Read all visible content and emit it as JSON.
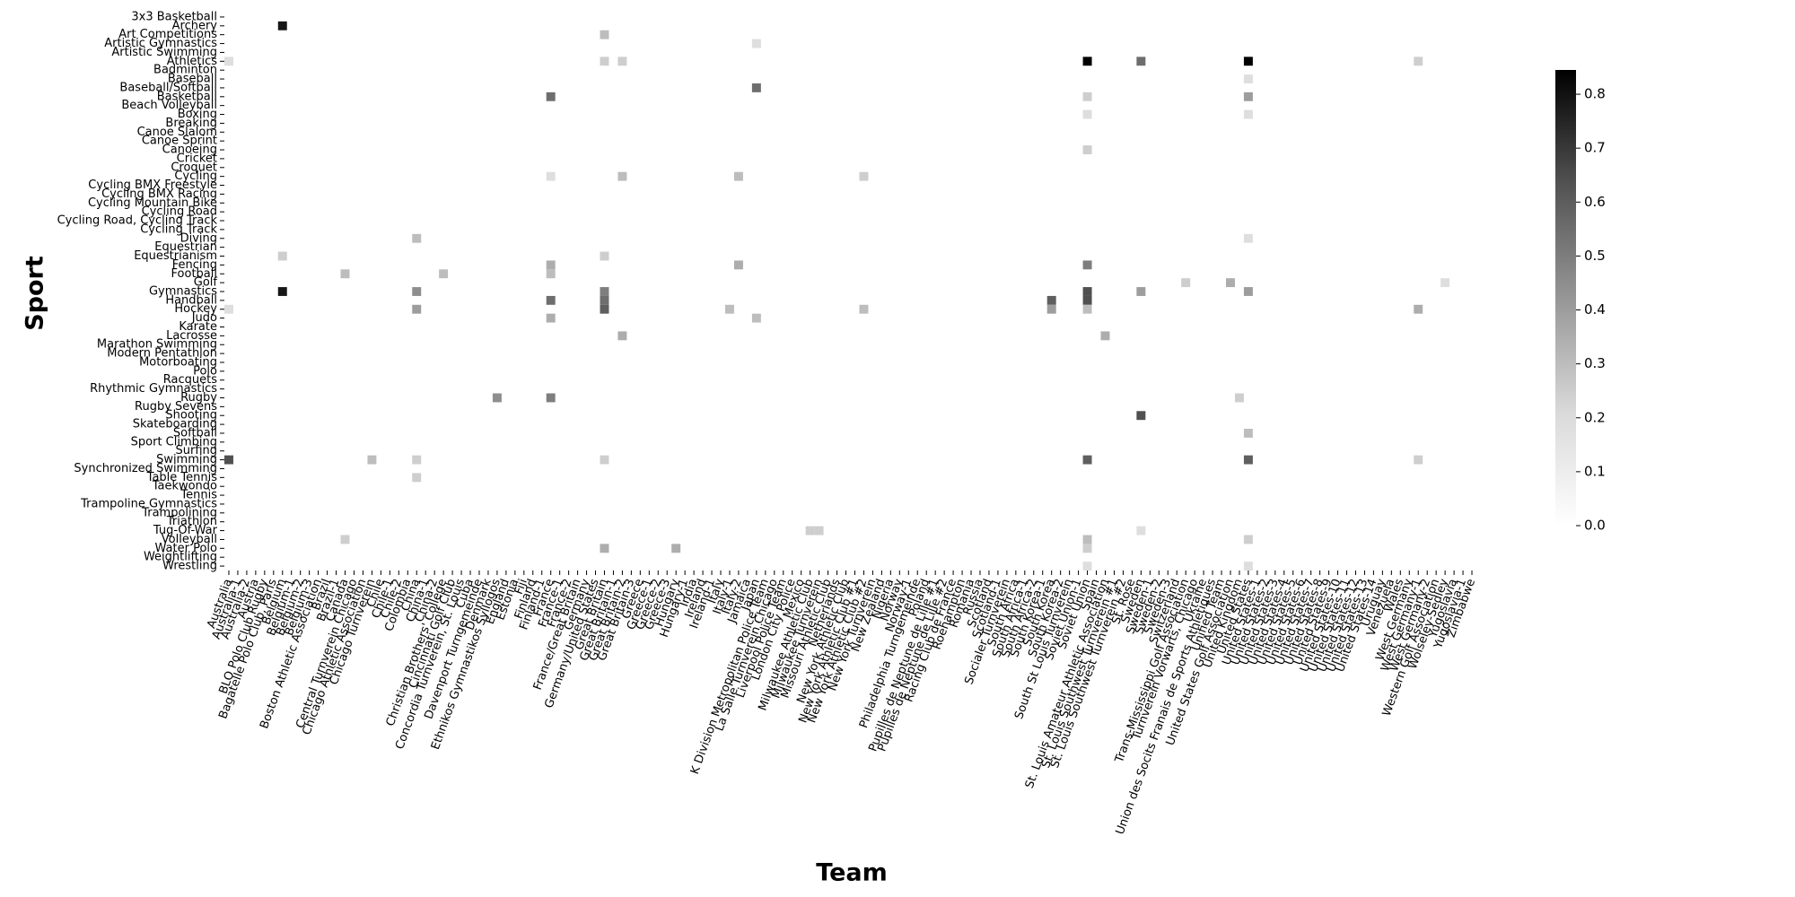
{
  "chart_data": {
    "type": "heatmap",
    "x_label": "Team",
    "y_label": "Sport",
    "colormap": "Greys",
    "zlim": [
      0,
      0.845
    ],
    "zticks": [
      {
        "value": 0,
        "label": "0.0"
      },
      0.1,
      0.2,
      0.3,
      0.4,
      0.5,
      0.6,
      0.7,
      0.8
    ],
    "x_categories": [
      "Australia",
      "Australia-1",
      "Australia-2",
      "Austria",
      "BLO Polo Club Rugby",
      "Bagatelle Polo Club, Paris",
      "Belgium",
      "Belgium-1",
      "Belgium-2",
      "Belgium-3",
      "Boston Athletic Association",
      "Brazil",
      "Brazil-1",
      "Canada",
      "Central Turnverein Chicago",
      "Chicago Athletic Association",
      "Chicago Turnverein",
      "Chile",
      "Chile-1",
      "Chile-2",
      "Colombia",
      "China",
      "China-1",
      "China-2",
      "Christian Brothers' College",
      "Cincinnati Golf Club",
      "Concordia Turnverein, St. Louis",
      "Cuba",
      "Davenport Turngemeinde",
      "Denmark",
      "Ethnikos Gymnastikos Syllogos",
      "England",
      "Estonia",
      "Fiji",
      "Finland",
      "Finland-1",
      "France",
      "France-1",
      "France-2",
      "France/Great Britain",
      "Germany",
      "Germany/United States",
      "Great Britain",
      "Great Britain-1",
      "Great Britain-2",
      "Great Britain-3",
      "Greece",
      "Greece-1",
      "Greece-2",
      "Greece-3",
      "Hungary",
      "Hungary-1",
      "India",
      "Ireland",
      "Ireland-1",
      "Italy",
      "Italy-1",
      "Italy-2",
      "Jamaica",
      "Japan",
      "K Division Metropolitan Police Team",
      "La Salle Turnverein Chicago",
      "Liverpool Police Team",
      "London City Police",
      "Mexico",
      "Milwaukee Athletic Club",
      "Milwaukee Turnverein",
      "Missouri Athletic Club",
      "Netherlands",
      "New York Athletic Club",
      "New York Athletic Club #1",
      "New York Athletic Club #2",
      "New York Turnverein",
      "New Zealand",
      "Nigeria",
      "Norway",
      "Norway-1",
      "Philadelphia Turngemeinde",
      "Poland",
      "Pupilles de Neptune de Lille #1",
      "Pupilles de Neptune de Lille #2",
      "Racing Club de France",
      "Roehampton",
      "Romania",
      "Russia",
      "Scotland",
      "Scotland-1",
      "Socialer Turnverein",
      "South Africa",
      "South Africa-1",
      "South Africa-2",
      "South Korea-1",
      "South Korea",
      "South Korea-2",
      "South St Louis Turnverein",
      "Soviet Union-1",
      "Soviet Union",
      "Spain",
      "St. Louis Amateur Athletic Association",
      "St. Louis Southwest Turnverein #1",
      "St. Louis Southwest Turnverein #2",
      "St. Rose",
      "Sweden",
      "Sweden-1",
      "Sweden-2",
      "Sweden-3",
      "Switzerland",
      "Trans-Mississippi Golf Association",
      "Turnverein Vorwarts, Chicago",
      "Ukraine",
      "Union des Socits Franais de Sports Athletiques",
      "Unified Team",
      "United States Golf Association",
      "United Kingdom",
      "United States",
      "United States-1",
      "United States-2",
      "United States-3",
      "United States-4",
      "United States-5",
      "United States-6",
      "United States-7",
      "United States-8",
      "United States-9",
      "United States-10",
      "United States-11",
      "United States-12",
      "United States-13",
      "United States-14",
      "Uruguay",
      "Venezuela",
      "Wales",
      "West Germany",
      "West Germany-1",
      "West Germany-2",
      "Western Golf Association",
      "Wolseley-Sedley",
      "Yugoslavia",
      "Yugoslavia-1",
      "Zimbabwe"
    ],
    "y_categories": [
      "3x3 Basketball",
      "Archery",
      "Art Competitions",
      "Artistic Gymnastics",
      "Artistic Swimming",
      "Athletics",
      "Badminton",
      "Baseball",
      "Baseball/Softball",
      "Basketball",
      "Beach Volleyball",
      "Boxing",
      "Breaking",
      "Canoe Slalom",
      "Canoe Sprint",
      "Canoeing",
      "Cricket",
      "Croquet",
      "Cycling",
      "Cycling BMX Freestyle",
      "Cycling BMX Racing",
      "Cycling Mountain Bike",
      "Cycling Road",
      "Cycling Road, Cycling Track",
      "Cycling Track",
      "Diving",
      "Equestrian",
      "Equestrianism",
      "Fencing",
      "Football",
      "Golf",
      "Gymnastics",
      "Handball",
      "Hockey",
      "Judo",
      "Karate",
      "Lacrosse",
      "Marathon Swimming",
      "Modern Pentathlon",
      "Motorboating",
      "Polo",
      "Racquets",
      "Rhythmic Gymnastics",
      "Rugby",
      "Rugby Sevens",
      "Shooting",
      "Skateboarding",
      "Softball",
      "Sport Climbing",
      "Surfing",
      "Swimming",
      "Synchronized Swimming",
      "Table Tennis",
      "Taekwondo",
      "Tennis",
      "Trampoline Gymnastics",
      "Trampolining",
      "Triathlon",
      "Tug-Of-War",
      "Volleyball",
      "Water Polo",
      "Weightlifting",
      "Wrestling"
    ],
    "cells": [
      {
        "x": "Belgium",
        "y": "Archery",
        "value": 0.75
      },
      {
        "x": "Great Britain",
        "y": "Art Competitions",
        "value": 0.2
      },
      {
        "x": "Japan",
        "y": "Artistic Gymnastics",
        "value": 0.1
      },
      {
        "x": "Soviet Union",
        "y": "Athletics",
        "value": 0.84
      },
      {
        "x": "Sweden",
        "y": "Athletics",
        "value": 0.45
      },
      {
        "x": "United States",
        "y": "Athletics",
        "value": 0.84
      },
      {
        "x": "Australia",
        "y": "Athletics",
        "value": 0.1
      },
      {
        "x": "Great Britain",
        "y": "Athletics",
        "value": 0.15
      },
      {
        "x": "Great Britain-2",
        "y": "Athletics",
        "value": 0.15
      },
      {
        "x": "West Germany-1",
        "y": "Athletics",
        "value": 0.15
      },
      {
        "x": "Japan",
        "y": "Baseball/Softball",
        "value": 0.45
      },
      {
        "x": "France",
        "y": "Basketball",
        "value": 0.45
      },
      {
        "x": "Soviet Union",
        "y": "Basketball",
        "value": 0.15
      },
      {
        "x": "United States",
        "y": "Basketball",
        "value": 0.3
      },
      {
        "x": "United States",
        "y": "Baseball",
        "value": 0.1
      },
      {
        "x": "Soviet Union",
        "y": "Boxing",
        "value": 0.1
      },
      {
        "x": "United States",
        "y": "Boxing",
        "value": 0.1
      },
      {
        "x": "Soviet Union",
        "y": "Canoeing",
        "value": 0.15
      },
      {
        "x": "France",
        "y": "Cycling",
        "value": 0.1
      },
      {
        "x": "Great Britain-2",
        "y": "Cycling",
        "value": 0.2
      },
      {
        "x": "Italy-2",
        "y": "Cycling",
        "value": 0.2
      },
      {
        "x": "New York Athletic Club #2",
        "y": "Cycling",
        "value": 0.15
      },
      {
        "x": "China",
        "y": "Diving",
        "value": 0.2
      },
      {
        "x": "United States",
        "y": "Diving",
        "value": 0.1
      },
      {
        "x": "Belgium",
        "y": "Equestrianism",
        "value": 0.15
      },
      {
        "x": "Great Britain",
        "y": "Equestrianism",
        "value": 0.15
      },
      {
        "x": "Italy-2",
        "y": "Fencing",
        "value": 0.25
      },
      {
        "x": "France",
        "y": "Fencing",
        "value": 0.25
      },
      {
        "x": "Soviet Union",
        "y": "Fencing",
        "value": 0.4
      },
      {
        "x": "Canada",
        "y": "Football",
        "value": 0.2
      },
      {
        "x": "Christian Brothers' College",
        "y": "Football",
        "value": 0.2
      },
      {
        "x": "France",
        "y": "Football",
        "value": 0.2
      },
      {
        "x": "Trans-Mississippi Golf Association",
        "y": "Golf",
        "value": 0.15
      },
      {
        "x": "United States Golf Association",
        "y": "Golf",
        "value": 0.25
      },
      {
        "x": "Wolseley-Sedley",
        "y": "Golf",
        "value": 0.1
      },
      {
        "x": "Belgium",
        "y": "Gymnastics",
        "value": 0.75
      },
      {
        "x": "China",
        "y": "Gymnastics",
        "value": 0.35
      },
      {
        "x": "Great Britain",
        "y": "Gymnastics",
        "value": 0.4
      },
      {
        "x": "Soviet Union",
        "y": "Gymnastics",
        "value": 0.55
      },
      {
        "x": "Sweden",
        "y": "Gymnastics",
        "value": 0.3
      },
      {
        "x": "United States",
        "y": "Gymnastics",
        "value": 0.3
      },
      {
        "x": "France",
        "y": "Handball",
        "value": 0.45
      },
      {
        "x": "Great Britain",
        "y": "Handball",
        "value": 0.45
      },
      {
        "x": "South Korea",
        "y": "Handball",
        "value": 0.5
      },
      {
        "x": "Soviet Union",
        "y": "Handball",
        "value": 0.55
      },
      {
        "x": "Australia",
        "y": "Hockey",
        "value": 0.1
      },
      {
        "x": "China",
        "y": "Hockey",
        "value": 0.3
      },
      {
        "x": "Great Britain",
        "y": "Hockey",
        "value": 0.5
      },
      {
        "x": "Italy-1",
        "y": "Hockey",
        "value": 0.2
      },
      {
        "x": "New York Athletic Club #2",
        "y": "Hockey",
        "value": 0.2
      },
      {
        "x": "South Korea",
        "y": "Hockey",
        "value": 0.3
      },
      {
        "x": "Soviet Union",
        "y": "Hockey",
        "value": 0.2
      },
      {
        "x": "West Germany-1",
        "y": "Hockey",
        "value": 0.25
      },
      {
        "x": "France",
        "y": "Judo",
        "value": 0.25
      },
      {
        "x": "Japan",
        "y": "Judo",
        "value": 0.2
      },
      {
        "x": "Great Britain-2",
        "y": "Lacrosse",
        "value": 0.25
      },
      {
        "x": "St. Louis Amateur Athletic Association",
        "y": "Lacrosse",
        "value": 0.25
      },
      {
        "x": "France",
        "y": "Rugby",
        "value": 0.4
      },
      {
        "x": "Ethnikos Gymnastikos Syllogos",
        "y": "Rugby",
        "value": 0.35
      },
      {
        "x": "United Kingdom",
        "y": "Rugby",
        "value": 0.15
      },
      {
        "x": "Sweden",
        "y": "Shooting",
        "value": 0.55
      },
      {
        "x": "United States",
        "y": "Softball",
        "value": 0.2
      },
      {
        "x": "Australia",
        "y": "Swimming",
        "value": 0.55
      },
      {
        "x": "Chicago Turnverein",
        "y": "Swimming",
        "value": 0.2
      },
      {
        "x": "China",
        "y": "Swimming",
        "value": 0.15
      },
      {
        "x": "Great Britain",
        "y": "Swimming",
        "value": 0.15
      },
      {
        "x": "Soviet Union",
        "y": "Swimming",
        "value": 0.5
      },
      {
        "x": "United States",
        "y": "Swimming",
        "value": 0.5
      },
      {
        "x": "West Germany-1",
        "y": "Swimming",
        "value": 0.15
      },
      {
        "x": "China",
        "y": "Table Tennis",
        "value": 0.15
      },
      {
        "x": "Milwaukee Athletic Club",
        "y": "Tug-Of-War",
        "value": 0.15
      },
      {
        "x": "Milwaukee Turnverein",
        "y": "Tug-Of-War",
        "value": 0.15
      },
      {
        "x": "Sweden",
        "y": "Tug-Of-War",
        "value": 0.1
      },
      {
        "x": "Canada",
        "y": "Volleyball",
        "value": 0.15
      },
      {
        "x": "Soviet Union",
        "y": "Volleyball",
        "value": 0.2
      },
      {
        "x": "United States",
        "y": "Volleyball",
        "value": 0.15
      },
      {
        "x": "Hungary",
        "y": "Water Polo",
        "value": 0.25
      },
      {
        "x": "Great Britain",
        "y": "Water Polo",
        "value": 0.25
      },
      {
        "x": "Soviet Union",
        "y": "Water Polo",
        "value": 0.15
      },
      {
        "x": "United States",
        "y": "Wrestling",
        "value": 0.1
      },
      {
        "x": "Soviet Union",
        "y": "Wrestling",
        "value": 0.1
      }
    ]
  }
}
